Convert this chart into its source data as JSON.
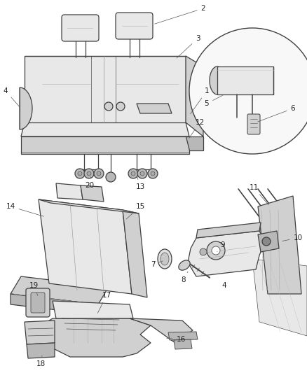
{
  "bg_color": "#ffffff",
  "line_color": "#404040",
  "fill_light": "#e8e8e8",
  "fill_mid": "#d0d0d0",
  "fill_dark": "#b8b8b8",
  "label_color": "#222222",
  "label_fs": 7.5,
  "figsize": [
    4.38,
    5.33
  ],
  "dpi": 100
}
